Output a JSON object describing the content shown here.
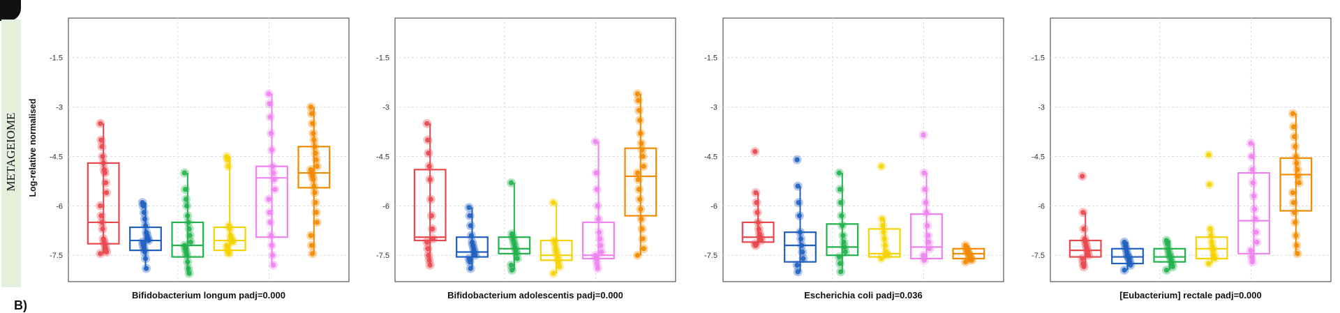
{
  "figure": {
    "side_label": "METAGEIOME",
    "y_axis_label": "Log-relative normalised",
    "bottom_label": "B)"
  },
  "group_colors": [
    "#e8484e",
    "#1f5fbf",
    "#22b14c",
    "#f5d300",
    "#ee82ee",
    "#f28a00"
  ],
  "chart_data": [
    {
      "type": "box",
      "xlabel": "Bifidobacterium longum padj=0.000",
      "ylim": [
        -8.3,
        -0.3
      ],
      "yticks": [
        -1.5,
        -3,
        -4.5,
        -6,
        -7.5
      ],
      "grid": true,
      "boxes": [
        {
          "q1": -7.15,
          "median": -6.5,
          "q3": -4.7,
          "whisker_low": -7.45,
          "whisker_high": -3.5,
          "points": [
            -3.5,
            -4.0,
            -4.2,
            -4.5,
            -4.7,
            -4.9,
            -5.0,
            -5.3,
            -5.6,
            -6.0,
            -6.3,
            -6.5,
            -6.7,
            -7.0,
            -7.1,
            -7.2,
            -7.3,
            -7.4,
            -7.45
          ]
        },
        {
          "q1": -7.35,
          "median": -7.05,
          "q3": -6.65,
          "whisker_low": -7.9,
          "whisker_high": -5.9,
          "points": [
            -5.9,
            -6.0,
            -6.2,
            -6.4,
            -6.6,
            -6.8,
            -6.9,
            -7.0,
            -7.05,
            -7.1,
            -7.2,
            -7.3,
            -7.4,
            -7.6,
            -7.9
          ]
        },
        {
          "q1": -7.55,
          "median": -7.2,
          "q3": -6.5,
          "whisker_low": -8.05,
          "whisker_high": -5.0,
          "points": [
            -5.0,
            -5.5,
            -5.8,
            -6.0,
            -6.3,
            -6.5,
            -6.7,
            -6.9,
            -7.1,
            -7.2,
            -7.3,
            -7.4,
            -7.5,
            -7.7,
            -7.9,
            -8.05
          ]
        },
        {
          "q1": -7.35,
          "median": -7.05,
          "q3": -6.65,
          "whisker_low": -7.45,
          "whisker_high": -4.5,
          "points": [
            -4.5,
            -4.6,
            -4.8,
            -6.6,
            -6.7,
            -6.9,
            -7.0,
            -7.05,
            -7.1,
            -7.2,
            -7.3,
            -7.4,
            -7.45
          ]
        },
        {
          "q1": -6.95,
          "median": -5.15,
          "q3": -4.8,
          "whisker_low": -7.8,
          "whisker_high": -2.6,
          "points": [
            -2.6,
            -2.9,
            -3.3,
            -3.8,
            -4.3,
            -4.8,
            -5.0,
            -5.2,
            -5.5,
            -5.8,
            -6.2,
            -6.5,
            -6.9,
            -7.2,
            -7.5,
            -7.8
          ]
        },
        {
          "q1": -5.45,
          "median": -5.0,
          "q3": -4.2,
          "whisker_low": -7.45,
          "whisker_high": -3.0,
          "points": [
            -3.0,
            -3.2,
            -3.5,
            -3.8,
            -4.0,
            -4.2,
            -4.4,
            -4.6,
            -4.8,
            -4.9,
            -5.0,
            -5.1,
            -5.2,
            -5.4,
            -5.6,
            -5.9,
            -6.2,
            -6.5,
            -6.9,
            -7.2,
            -7.45
          ]
        }
      ]
    },
    {
      "type": "box",
      "xlabel": "Bifidobacterium adolescentis padj=0.000",
      "ylim": [
        -8.3,
        -0.3
      ],
      "yticks": [
        -1.5,
        -3,
        -4.5,
        -6,
        -7.5
      ],
      "grid": true,
      "boxes": [
        {
          "q1": -7.05,
          "median": -6.95,
          "q3": -4.9,
          "whisker_low": -7.8,
          "whisker_high": -3.5,
          "points": [
            -3.5,
            -4.0,
            -4.4,
            -4.8,
            -5.2,
            -5.8,
            -6.3,
            -6.7,
            -7.0,
            -7.1,
            -7.3,
            -7.5,
            -7.65,
            -7.8
          ]
        },
        {
          "q1": -7.55,
          "median": -7.4,
          "q3": -6.95,
          "whisker_low": -7.9,
          "whisker_high": -6.05,
          "points": [
            -6.05,
            -6.3,
            -6.6,
            -6.9,
            -7.1,
            -7.2,
            -7.3,
            -7.4,
            -7.5,
            -7.6,
            -7.7,
            -7.9
          ]
        },
        {
          "q1": -7.45,
          "median": -7.3,
          "q3": -6.95,
          "whisker_low": -7.95,
          "whisker_high": -5.3,
          "points": [
            -5.3,
            -6.85,
            -6.95,
            -7.05,
            -7.15,
            -7.25,
            -7.35,
            -7.45,
            -7.6,
            -7.8,
            -7.95
          ]
        },
        {
          "q1": -7.65,
          "median": -7.5,
          "q3": -7.05,
          "whisker_low": -8.05,
          "whisker_high": -5.9,
          "points": [
            -5.9,
            -7.05,
            -7.15,
            -7.3,
            -7.4,
            -7.5,
            -7.6,
            -7.7,
            -7.85,
            -8.05
          ]
        },
        {
          "q1": -7.6,
          "median": -7.5,
          "q3": -6.5,
          "whisker_low": -7.9,
          "whisker_high": -4.05,
          "points": [
            -4.05,
            -5.0,
            -5.5,
            -6.0,
            -6.4,
            -6.8,
            -7.0,
            -7.2,
            -7.4,
            -7.5,
            -7.6,
            -7.75,
            -7.9
          ]
        },
        {
          "q1": -6.3,
          "median": -5.1,
          "q3": -4.25,
          "whisker_low": -7.5,
          "whisker_high": -2.6,
          "points": [
            -2.6,
            -2.8,
            -3.1,
            -3.4,
            -3.8,
            -4.1,
            -4.3,
            -4.5,
            -4.8,
            -5.0,
            -5.2,
            -5.5,
            -5.8,
            -6.1,
            -6.4,
            -6.7,
            -7.0,
            -7.3,
            -7.5
          ]
        }
      ]
    },
    {
      "type": "box",
      "xlabel": "Escherichia coli padj=0.036",
      "ylim": [
        -8.3,
        -0.3
      ],
      "yticks": [
        -1.5,
        -3,
        -4.5,
        -6,
        -7.5
      ],
      "grid": true,
      "boxes": [
        {
          "q1": -7.1,
          "median": -6.95,
          "q3": -6.5,
          "whisker_low": -7.2,
          "whisker_high": -5.6,
          "points": [
            -4.35,
            -5.6,
            -5.9,
            -6.2,
            -6.5,
            -6.7,
            -6.85,
            -6.95,
            -7.05,
            -7.15,
            -7.2
          ]
        },
        {
          "q1": -7.7,
          "median": -7.2,
          "q3": -6.8,
          "whisker_low": -8.0,
          "whisker_high": -5.4,
          "points": [
            -4.6,
            -5.4,
            -5.9,
            -6.3,
            -6.8,
            -7.0,
            -7.2,
            -7.4,
            -7.6,
            -7.8,
            -8.0
          ]
        },
        {
          "q1": -7.5,
          "median": -7.25,
          "q3": -6.55,
          "whisker_low": -8.0,
          "whisker_high": -5.0,
          "points": [
            -5.0,
            -5.5,
            -5.9,
            -6.3,
            -6.6,
            -6.9,
            -7.1,
            -7.25,
            -7.4,
            -7.55,
            -7.75,
            -8.0
          ]
        },
        {
          "q1": -7.55,
          "median": -7.45,
          "q3": -6.7,
          "whisker_low": -7.6,
          "whisker_high": -6.4,
          "points": [
            -4.8,
            -6.4,
            -6.6,
            -6.8,
            -7.0,
            -7.2,
            -7.4,
            -7.45,
            -7.5,
            -7.6
          ]
        },
        {
          "q1": -7.6,
          "median": -7.25,
          "q3": -6.25,
          "whisker_low": -7.65,
          "whisker_high": -5.0,
          "points": [
            -3.85,
            -5.0,
            -5.5,
            -5.9,
            -6.2,
            -6.6,
            -6.9,
            -7.1,
            -7.3,
            -7.5,
            -7.65
          ]
        },
        {
          "q1": -7.6,
          "median": -7.45,
          "q3": -7.3,
          "whisker_low": -7.7,
          "whisker_high": -7.2,
          "points": [
            -7.2,
            -7.3,
            -7.35,
            -7.4,
            -7.45,
            -7.5,
            -7.55,
            -7.6,
            -7.65,
            -7.7
          ]
        }
      ]
    },
    {
      "type": "box",
      "xlabel": "[Eubacterium] rectale padj=0.000",
      "ylim": [
        -8.3,
        -0.3
      ],
      "yticks": [
        -1.5,
        -3,
        -4.5,
        -6,
        -7.5
      ],
      "grid": true,
      "boxes": [
        {
          "q1": -7.55,
          "median": -7.35,
          "q3": -7.05,
          "whisker_low": -7.85,
          "whisker_high": -6.2,
          "points": [
            -5.1,
            -6.2,
            -6.7,
            -7.0,
            -7.1,
            -7.2,
            -7.3,
            -7.4,
            -7.5,
            -7.6,
            -7.75,
            -7.85
          ]
        },
        {
          "q1": -7.75,
          "median": -7.55,
          "q3": -7.3,
          "whisker_low": -7.95,
          "whisker_high": -7.1,
          "points": [
            -7.1,
            -7.2,
            -7.3,
            -7.4,
            -7.5,
            -7.55,
            -7.6,
            -7.7,
            -7.8,
            -7.95
          ]
        },
        {
          "q1": -7.7,
          "median": -7.55,
          "q3": -7.3,
          "whisker_low": -7.95,
          "whisker_high": -7.05,
          "points": [
            -7.05,
            -7.15,
            -7.3,
            -7.4,
            -7.5,
            -7.55,
            -7.65,
            -7.75,
            -7.85,
            -7.95
          ]
        },
        {
          "q1": -7.6,
          "median": -7.3,
          "q3": -6.95,
          "whisker_low": -7.75,
          "whisker_high": -6.7,
          "points": [
            -4.45,
            -5.35,
            -6.7,
            -6.9,
            -7.1,
            -7.25,
            -7.35,
            -7.5,
            -7.6,
            -7.75
          ]
        },
        {
          "q1": -7.45,
          "median": -6.45,
          "q3": -5.0,
          "whisker_low": -7.7,
          "whisker_high": -4.1,
          "points": [
            -4.1,
            -4.5,
            -4.9,
            -5.3,
            -5.7,
            -6.1,
            -6.4,
            -6.8,
            -7.1,
            -7.35,
            -7.55,
            -7.7
          ]
        },
        {
          "q1": -6.15,
          "median": -5.05,
          "q3": -4.55,
          "whisker_low": -7.45,
          "whisker_high": -3.2,
          "points": [
            -3.2,
            -3.6,
            -3.9,
            -4.2,
            -4.5,
            -4.7,
            -4.9,
            -5.1,
            -5.3,
            -5.6,
            -5.9,
            -6.2,
            -6.5,
            -6.9,
            -7.2,
            -7.45
          ]
        }
      ]
    }
  ]
}
